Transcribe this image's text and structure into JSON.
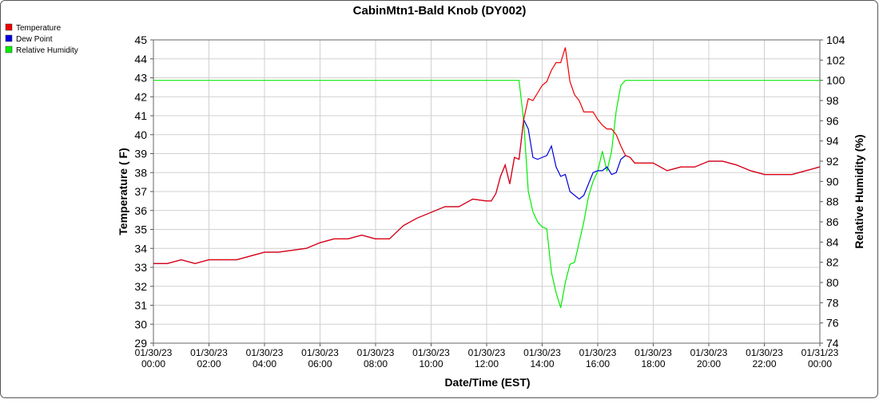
{
  "chart_data": {
    "type": "line",
    "title": "CabinMtn1-Bald Knob (DY002)",
    "xlabel": "Date/Time (EST)",
    "ylabel": "Temperature ( F)",
    "y2label": "Relative Humidity (%)",
    "x": [
      0,
      30,
      60,
      90,
      120,
      150,
      180,
      210,
      240,
      270,
      300,
      330,
      360,
      390,
      420,
      450,
      480,
      510,
      540,
      570,
      600,
      630,
      660,
      690,
      720,
      730,
      740,
      750,
      760,
      770,
      780,
      790,
      800,
      810,
      820,
      830,
      840,
      850,
      860,
      870,
      880,
      890,
      900,
      910,
      920,
      930,
      940,
      950,
      960,
      970,
      980,
      990,
      1000,
      1010,
      1020,
      1030,
      1040,
      1050,
      1060,
      1070,
      1080,
      1110,
      1140,
      1170,
      1200,
      1230,
      1260,
      1290,
      1320,
      1350,
      1380,
      1410,
      1440
    ],
    "xlim": [
      0,
      1440
    ],
    "xticks": [
      {
        "value": 0,
        "label": "01/30/23 00:00"
      },
      {
        "value": 120,
        "label": "01/30/23 02:00"
      },
      {
        "value": 240,
        "label": "01/30/23 04:00"
      },
      {
        "value": 360,
        "label": "01/30/23 06:00"
      },
      {
        "value": 480,
        "label": "01/30/23 08:00"
      },
      {
        "value": 600,
        "label": "01/30/23 10:00"
      },
      {
        "value": 720,
        "label": "01/30/23 12:00"
      },
      {
        "value": 840,
        "label": "01/30/23 14:00"
      },
      {
        "value": 960,
        "label": "01/30/23 16:00"
      },
      {
        "value": 1080,
        "label": "01/30/23 18:00"
      },
      {
        "value": 1200,
        "label": "01/30/23 20:00"
      },
      {
        "value": 1320,
        "label": "01/30/23 22:00"
      },
      {
        "value": 1440,
        "label": "01/31/23 00:00"
      }
    ],
    "ylim": [
      29,
      45
    ],
    "yticks": [
      29,
      30,
      31,
      32,
      33,
      34,
      35,
      36,
      37,
      38,
      39,
      40,
      41,
      42,
      43,
      44,
      45
    ],
    "y2lim": [
      74,
      104
    ],
    "y2ticks": [
      74,
      76,
      78,
      80,
      82,
      84,
      86,
      88,
      90,
      92,
      94,
      96,
      98,
      100,
      102,
      104
    ],
    "grid": true,
    "legend": "top-left",
    "series": [
      {
        "name": "Relative Humidity",
        "color": "#00ee00",
        "axis": "y2",
        "values": [
          100,
          100,
          100,
          100,
          100,
          100,
          100,
          100,
          100,
          100,
          100,
          100,
          100,
          100,
          100,
          100,
          100,
          100,
          100,
          100,
          100,
          100,
          100,
          100,
          100,
          100,
          100,
          100,
          100,
          100,
          100,
          100,
          96,
          89,
          87,
          86,
          85.5,
          85.3,
          81,
          79,
          77.5,
          80,
          81.8,
          82,
          84,
          86,
          88.5,
          90,
          91,
          93,
          91,
          93,
          97,
          99.5,
          100,
          100,
          100,
          100,
          100,
          100,
          100,
          100,
          100,
          100,
          100,
          100,
          100,
          100,
          100,
          100,
          100,
          100,
          100
        ]
      },
      {
        "name": "Dew Point",
        "color": "#0000dd",
        "values": [
          33.2,
          33.2,
          33.4,
          33.2,
          33.4,
          33.4,
          33.4,
          33.6,
          33.8,
          33.8,
          33.9,
          34.0,
          34.3,
          34.5,
          34.5,
          34.7,
          34.5,
          34.5,
          35.2,
          35.6,
          35.9,
          36.2,
          36.2,
          36.6,
          36.5,
          36.5,
          36.9,
          37.8,
          38.4,
          37.4,
          38.8,
          38.7,
          40.8,
          40.3,
          38.8,
          38.7,
          38.8,
          38.9,
          39.4,
          38.3,
          37.8,
          37.9,
          37.0,
          36.8,
          36.6,
          36.8,
          37.4,
          38.0,
          38.1,
          38.1,
          38.3,
          37.9,
          38.0,
          38.7,
          38.9,
          38.8,
          38.5,
          38.5,
          38.5,
          38.5,
          38.5,
          38.1,
          38.3,
          38.3,
          38.6,
          38.6,
          38.4,
          38.1,
          37.9,
          37.9,
          37.9,
          38.1,
          38.3
        ]
      },
      {
        "name": "Temperature",
        "color": "#ee0000",
        "values": [
          33.2,
          33.2,
          33.4,
          33.2,
          33.4,
          33.4,
          33.4,
          33.6,
          33.8,
          33.8,
          33.9,
          34.0,
          34.3,
          34.5,
          34.5,
          34.7,
          34.5,
          34.5,
          35.2,
          35.6,
          35.9,
          36.2,
          36.2,
          36.6,
          36.5,
          36.5,
          36.9,
          37.8,
          38.4,
          37.4,
          38.8,
          38.7,
          40.8,
          41.9,
          41.8,
          42.2,
          42.6,
          42.8,
          43.4,
          43.8,
          43.8,
          44.6,
          42.8,
          42.1,
          41.8,
          41.2,
          41.2,
          41.2,
          40.8,
          40.5,
          40.3,
          40.3,
          40.0,
          39.4,
          38.9,
          38.8,
          38.5,
          38.5,
          38.5,
          38.5,
          38.5,
          38.1,
          38.3,
          38.3,
          38.6,
          38.6,
          38.4,
          38.1,
          37.9,
          37.9,
          37.9,
          38.1,
          38.3
        ]
      }
    ]
  }
}
